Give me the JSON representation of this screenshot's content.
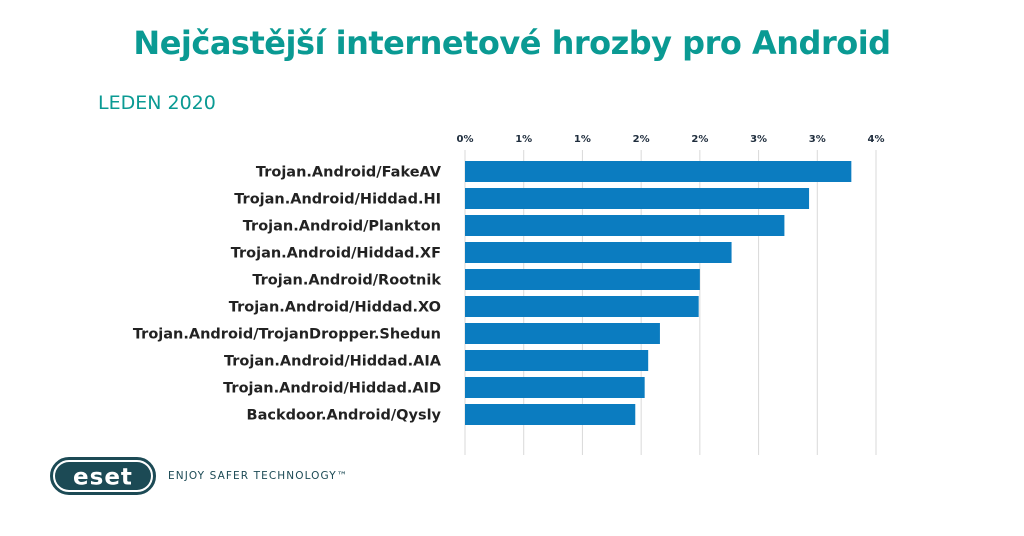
{
  "title": "Nejčastější internetové hrozby pro Android",
  "subtitle": "LEDEN 2020",
  "colors": {
    "title": "#0a9a93",
    "bar": "#0b7cc0",
    "grid": "#d9d9d9",
    "logo": "#1c4a55"
  },
  "branding": {
    "logo_text": "ESET",
    "tagline": "ENJOY SAFER TECHNOLOGY™"
  },
  "chart_data": {
    "type": "bar",
    "orientation": "horizontal",
    "categories": [
      "Trojan.Android/FakeAV",
      "Trojan.Android/Hiddad.HI",
      "Trojan.Android/Plankton",
      "Trojan.Android/Hiddad.XF",
      "Trojan.Android/Rootnik",
      "Trojan.Android/Hiddad.XO",
      "Trojan.Android/TrojanDropper.Shedun",
      "Trojan.Android/Hiddad.AIA",
      "Trojan.Android/Hiddad.AID",
      "Backdoor.Android/Qysly"
    ],
    "values": [
      3.29,
      2.93,
      2.72,
      2.27,
      2.0,
      1.99,
      1.66,
      1.56,
      1.53,
      1.45
    ],
    "xlim": [
      0,
      3.5
    ],
    "xticks": [
      0,
      0.5,
      1.0,
      1.5,
      2.0,
      2.5,
      3.0,
      3.5
    ],
    "xtick_labels": [
      "0%",
      "1%",
      "1%",
      "2%",
      "2%",
      "3%",
      "3%",
      "4%"
    ],
    "xaxis_position": "top",
    "grid": true,
    "legend": "none",
    "title": "Nejčastější internetové hrozby pro Android",
    "subtitle": "LEDEN 2020"
  }
}
